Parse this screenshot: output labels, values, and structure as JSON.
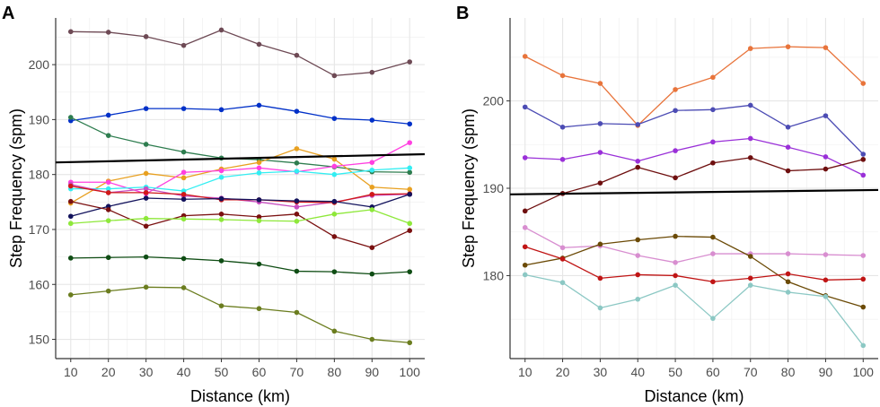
{
  "chart_data": [
    {
      "type": "line",
      "panel": "A",
      "xlabel": "Distance (km)",
      "ylabel": "Step Frequency (spm)",
      "xlim": [
        6,
        104
      ],
      "ylim": [
        146.5,
        208.5
      ],
      "xticks": [
        10,
        20,
        30,
        40,
        50,
        60,
        70,
        80,
        90,
        100
      ],
      "yticks": [
        150,
        160,
        170,
        180,
        190,
        200
      ],
      "grid": true,
      "x": [
        10,
        20,
        30,
        40,
        50,
        60,
        70,
        80,
        90,
        100
      ],
      "trend_line": {
        "color": "#000000",
        "y_start": 182.2,
        "y_end": 183.7,
        "x_start": 6,
        "x_end": 104
      },
      "series": [
        {
          "color": "#6e4a55",
          "values": [
            206,
            205.9,
            205.1,
            203.5,
            206.3,
            203.7,
            201.7,
            198,
            198.6,
            200.5
          ]
        },
        {
          "color": "#0030c8",
          "values": [
            189.8,
            190.8,
            192,
            192,
            191.8,
            192.6,
            191.5,
            190.2,
            189.9,
            189.2
          ]
        },
        {
          "color": "#2e7d4f",
          "values": [
            190.4,
            187.1,
            185.5,
            184.1,
            183,
            182.7,
            182.1,
            181.4,
            180.5,
            180.4
          ]
        },
        {
          "color": "#e8a020",
          "values": [
            174.8,
            178.8,
            180.2,
            179.4,
            181,
            182.2,
            184.7,
            182.8,
            177.7,
            177.3
          ]
        },
        {
          "color": "#ff40e0",
          "values": [
            178.6,
            178.6,
            176.5,
            180.4,
            180.7,
            181.2,
            180.5,
            181.5,
            182.2,
            185.8
          ]
        },
        {
          "color": "#33eef2",
          "values": [
            177.4,
            177.4,
            177.7,
            177,
            179.5,
            180.3,
            180.6,
            180,
            180.8,
            181.2
          ]
        },
        {
          "color": "#c84dc0",
          "values": [
            178.2,
            176.7,
            177.4,
            176.1,
            175.7,
            175,
            174.1,
            175,
            176.2,
            176.4
          ]
        },
        {
          "color": "#d01818",
          "values": [
            177.9,
            176.7,
            176.7,
            176.4,
            175.4,
            175.4,
            175,
            174.9,
            176.4,
            176.5
          ]
        },
        {
          "color": "#12125c",
          "values": [
            172.4,
            174.2,
            175.7,
            175.5,
            175.6,
            175.4,
            175.2,
            175.1,
            174.1,
            176.4
          ]
        },
        {
          "color": "#7a1010",
          "values": [
            175.1,
            173.6,
            170.6,
            172.5,
            172.8,
            172.3,
            172.8,
            168.7,
            166.7,
            169.8
          ]
        },
        {
          "color": "#8ee83a",
          "values": [
            171.1,
            171.6,
            172,
            171.9,
            171.8,
            171.6,
            171.5,
            172.8,
            173.6,
            171.1
          ]
        },
        {
          "color": "#0f4d14",
          "values": [
            164.8,
            164.9,
            165,
            164.7,
            164.3,
            163.7,
            162.4,
            162.3,
            161.9,
            162.3
          ]
        },
        {
          "color": "#6b7d1f",
          "values": [
            158.1,
            158.8,
            159.5,
            159.4,
            156.1,
            155.6,
            154.9,
            151.5,
            150,
            149.4
          ]
        }
      ]
    },
    {
      "type": "line",
      "panel": "B",
      "xlabel": "Distance (km)",
      "ylabel": "Step Frequency (spm)",
      "xlim": [
        6,
        104
      ],
      "ylim": [
        170.5,
        209.5
      ],
      "xticks": [
        10,
        20,
        30,
        40,
        50,
        60,
        70,
        80,
        90,
        100
      ],
      "yticks": [
        180,
        190,
        200
      ],
      "grid": true,
      "x": [
        10,
        20,
        30,
        40,
        50,
        60,
        70,
        80,
        90,
        100
      ],
      "trend_line": {
        "color": "#000000",
        "y_start": 189.3,
        "y_end": 189.8,
        "x_start": 6,
        "x_end": 104
      },
      "series": [
        {
          "color": "#e8743b",
          "values": [
            205.1,
            202.9,
            202,
            197.2,
            201.3,
            202.7,
            206,
            206.2,
            206.1,
            202
          ]
        },
        {
          "color": "#4c4cb4",
          "values": [
            199.3,
            197,
            197.4,
            197.3,
            198.9,
            199,
            199.5,
            197,
            198.3,
            193.9
          ]
        },
        {
          "color": "#9a30d8",
          "values": [
            193.5,
            193.3,
            194.1,
            193.1,
            194.3,
            195.3,
            195.7,
            194.7,
            193.6,
            191.5
          ]
        },
        {
          "color": "#6e0f0f",
          "values": [
            187.4,
            189.4,
            190.6,
            192.4,
            191.2,
            192.9,
            193.5,
            192,
            192.2,
            193.3
          ]
        },
        {
          "color": "#d88ed0",
          "values": [
            185.5,
            183.2,
            183.4,
            182.3,
            181.5,
            182.5,
            182.5,
            182.5,
            182.4,
            182.3
          ]
        },
        {
          "color": "#6b4a06",
          "values": [
            181.2,
            182,
            183.6,
            184.1,
            184.5,
            184.4,
            182.2,
            179.3,
            177.7,
            176.4
          ]
        },
        {
          "color": "#c01515",
          "values": [
            183.3,
            181.9,
            179.7,
            180.1,
            180,
            179.3,
            179.7,
            180.2,
            179.5,
            179.6
          ]
        },
        {
          "color": "#8cc8c4",
          "values": [
            180.1,
            179.2,
            176.3,
            177.3,
            178.9,
            175.1,
            178.9,
            178.1,
            177.6,
            172
          ]
        }
      ]
    }
  ]
}
